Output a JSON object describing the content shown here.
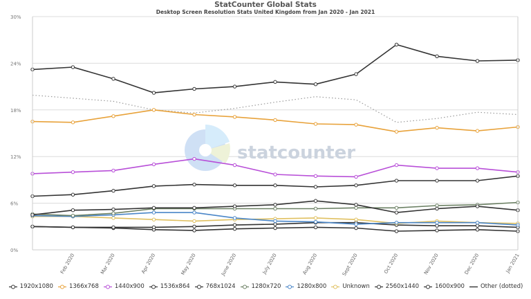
{
  "header": {
    "title": "StatCounter Global Stats",
    "subtitle": "Desktop Screen Resolution Stats United Kingdom from Jan 2020 - Jan 2021"
  },
  "watermark": "statcounter",
  "chart_data": {
    "type": "line",
    "title": "StatCounter Global Stats",
    "subtitle": "Desktop Screen Resolution Stats United Kingdom from Jan 2020 - Jan 2021",
    "xlabel": "",
    "ylabel": "",
    "ylim": [
      0,
      30
    ],
    "yticks": [
      "0%",
      "6%",
      "12%",
      "18%",
      "24%",
      "30%"
    ],
    "grid": true,
    "legend_position": "bottom",
    "categories": [
      "Jan 2020",
      "Feb 2020",
      "Mar 2020",
      "Apr 2020",
      "May 2020",
      "June 2020",
      "July 2020",
      "Aug 2020",
      "Sept 2020",
      "Oct 2020",
      "Nov 2020",
      "Dec 2020",
      "Jan 2021"
    ],
    "x_tick_labels": [
      "Feb 2020",
      "Mar 2020",
      "Apr 2020",
      "May 2020",
      "June 2020",
      "July 2020",
      "Aug 2020",
      "Sept 2020",
      "Oct 2020",
      "Nov 2020",
      "Dec 2020",
      "Jan 2021"
    ],
    "series": [
      {
        "name": "1920x1080",
        "color": "#333333",
        "dotted": false,
        "values": [
          23.2,
          23.5,
          22.0,
          20.2,
          20.7,
          21.0,
          21.6,
          21.3,
          22.6,
          26.4,
          24.9,
          24.3,
          24.4
        ]
      },
      {
        "name": "1366x768",
        "color": "#e8a23a",
        "dotted": false,
        "values": [
          16.5,
          16.4,
          17.2,
          18.0,
          17.4,
          17.1,
          16.7,
          16.2,
          16.1,
          15.2,
          15.7,
          15.3,
          15.8
        ]
      },
      {
        "name": "1440x900",
        "color": "#b84fd8",
        "dotted": false,
        "values": [
          9.8,
          10.0,
          10.2,
          11.0,
          11.7,
          10.9,
          9.7,
          9.5,
          9.4,
          10.9,
          10.5,
          10.5,
          10.0
        ]
      },
      {
        "name": "1536x864",
        "color": "#333333",
        "dotted": false,
        "values": [
          6.9,
          7.1,
          7.6,
          8.2,
          8.4,
          8.3,
          8.3,
          8.1,
          8.3,
          8.9,
          8.9,
          8.9,
          9.5
        ]
      },
      {
        "name": "768x1024",
        "color": "#333333",
        "dotted": false,
        "values": [
          4.5,
          5.1,
          5.2,
          5.4,
          5.4,
          5.6,
          5.8,
          6.3,
          5.8,
          4.8,
          5.3,
          5.6,
          5.1
        ]
      },
      {
        "name": "1280x720",
        "color": "#6b8063",
        "dotted": false,
        "values": [
          4.6,
          4.4,
          4.7,
          5.3,
          5.3,
          5.3,
          5.3,
          5.3,
          5.4,
          5.4,
          5.7,
          5.8,
          6.1
        ]
      },
      {
        "name": "1280x800",
        "color": "#4a86c8",
        "dotted": false,
        "values": [
          4.4,
          4.3,
          4.5,
          4.8,
          4.8,
          4.1,
          3.7,
          3.6,
          3.3,
          3.5,
          3.5,
          3.5,
          3.2
        ]
      },
      {
        "name": "Unknown",
        "color": "#e0c060",
        "dotted": false,
        "values": [
          4.3,
          4.3,
          4.1,
          3.9,
          3.7,
          3.9,
          4.0,
          4.1,
          3.9,
          3.4,
          3.7,
          3.5,
          3.4
        ]
      },
      {
        "name": "2560x1440",
        "color": "#333333",
        "dotted": false,
        "values": [
          3.0,
          2.9,
          2.9,
          2.9,
          3.0,
          3.2,
          3.3,
          3.5,
          3.5,
          3.2,
          3.1,
          3.1,
          2.9
        ]
      },
      {
        "name": "1600x900",
        "color": "#333333",
        "dotted": false,
        "values": [
          3.0,
          2.9,
          2.8,
          2.6,
          2.5,
          2.7,
          2.8,
          2.9,
          2.8,
          2.4,
          2.5,
          2.6,
          2.4
        ]
      },
      {
        "name": "Other (dotted)",
        "color": "#999999",
        "dotted": true,
        "values": [
          19.9,
          19.5,
          19.1,
          18.0,
          17.6,
          18.2,
          19.0,
          19.7,
          19.3,
          16.4,
          16.9,
          17.7,
          17.4
        ]
      }
    ]
  },
  "legend": {
    "items": [
      {
        "label": "1920x1080",
        "color": "#333333"
      },
      {
        "label": "1366x768",
        "color": "#e8a23a"
      },
      {
        "label": "1440x900",
        "color": "#b84fd8"
      },
      {
        "label": "1536x864",
        "color": "#333333"
      },
      {
        "label": "768x1024",
        "color": "#333333"
      },
      {
        "label": "1280x720",
        "color": "#6b8063"
      },
      {
        "label": "1280x800",
        "color": "#4a86c8"
      },
      {
        "label": "Unknown",
        "color": "#e0c060"
      },
      {
        "label": "2560x1440",
        "color": "#333333"
      },
      {
        "label": "1600x900",
        "color": "#333333"
      },
      {
        "label": "Other (dotted)",
        "color": "#333333"
      }
    ]
  }
}
